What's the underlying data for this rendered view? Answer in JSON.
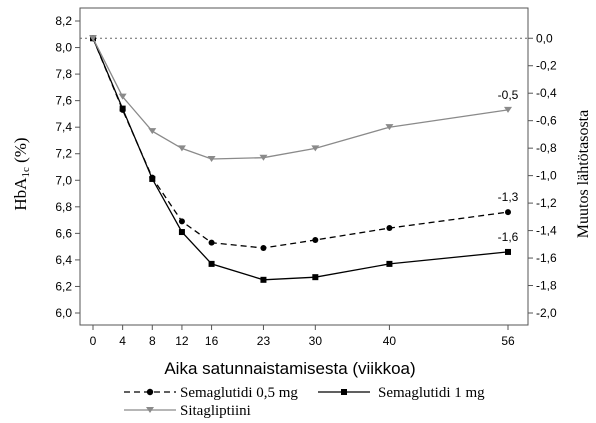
{
  "chart_data": {
    "type": "line",
    "x_ticks": [
      0,
      4,
      8,
      12,
      16,
      23,
      30,
      40,
      56
    ],
    "xlabel": "Aika satunnaistamisesta (viikkoa)",
    "ylabel_main": "HbA",
    "ylabel_sub": "1c",
    "ylabel_unit": " (%)",
    "ylabel_right": "Muutos lähtötasosta",
    "ylim": [
      6.0,
      8.2
    ],
    "y_ticks": [
      "6,0",
      "6,2",
      "6,4",
      "6,6",
      "6,8",
      "7,0",
      "7,2",
      "7,4",
      "7,6",
      "7,8",
      "8,0",
      "8,2"
    ],
    "y2lim": [
      -2.0,
      0.0
    ],
    "y2_ticks": [
      "-2,0",
      "-1,8",
      "-1,6",
      "-1,4",
      "-1,2",
      "-1,0",
      "-0,8",
      "-0,6",
      "-0,4",
      "-0,2",
      "0,0"
    ],
    "baseline": 8.07,
    "grid": false,
    "series": [
      {
        "name": "Semaglutidi 0,5 mg",
        "marker": "circle",
        "line": "dashed",
        "color": "#000000",
        "x": [
          0,
          4,
          8,
          12,
          16,
          23,
          30,
          40,
          56
        ],
        "y": [
          8.07,
          7.53,
          7.02,
          6.69,
          6.53,
          6.49,
          6.55,
          6.64,
          6.76
        ],
        "end_label": "-1,3"
      },
      {
        "name": "Semaglutidi 1 mg",
        "marker": "square",
        "line": "solid",
        "color": "#000000",
        "x": [
          0,
          4,
          8,
          12,
          16,
          23,
          30,
          40,
          56
        ],
        "y": [
          8.07,
          7.54,
          7.01,
          6.61,
          6.37,
          6.25,
          6.27,
          6.37,
          6.46
        ],
        "end_label": "-1,6"
      },
      {
        "name": "Sitagliptiini",
        "marker": "triangle-down",
        "line": "solid",
        "color": "#8a8a8a",
        "x": [
          0,
          4,
          8,
          12,
          16,
          23,
          30,
          40,
          56
        ],
        "y": [
          8.07,
          7.63,
          7.37,
          7.24,
          7.16,
          7.17,
          7.24,
          7.4,
          7.53
        ],
        "end_label": "-0,5"
      }
    ],
    "legend_position": "bottom"
  }
}
